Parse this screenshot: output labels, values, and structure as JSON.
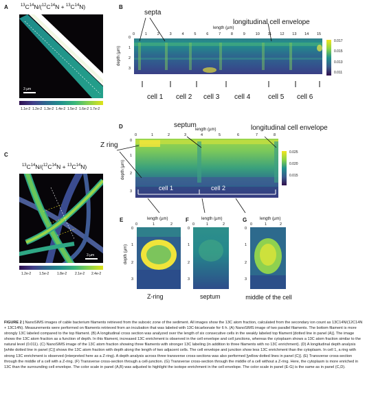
{
  "panelA": {
    "label": "A",
    "title_parts": [
      "13",
      "C",
      "14",
      "N/(",
      "12",
      "C",
      "14",
      "N + ",
      "13",
      "C",
      "14",
      "N)"
    ],
    "colorbar_ticks": [
      "1.1e-2",
      "1.2e-2",
      "1.3e-2",
      "1.4e-2",
      "1.5e-2",
      "1.6e-2",
      "1.7e-2"
    ],
    "scalebar": "3 µm"
  },
  "panelB": {
    "label": "B",
    "xlabel": "length (µm)",
    "ylabel": "depth (µm)",
    "xticks": [
      "0",
      "1",
      "2",
      "3",
      "4",
      "5",
      "6",
      "7",
      "8",
      "9",
      "10",
      "11",
      "12",
      "13",
      "14",
      "15"
    ],
    "yticks": [
      "0",
      "1",
      "2",
      "3"
    ],
    "colorbar_ticks": [
      "0.017",
      "0.015",
      "0.013",
      "0.011"
    ],
    "annotation_septa": "septa",
    "annotation_envelope": "longitudinal cell envelope",
    "cells": [
      "cell 1",
      "cell 2",
      "cell 3",
      "cell 4",
      "cell 5",
      "cell 6"
    ]
  },
  "panelC": {
    "label": "C",
    "title_parts": [
      "13",
      "C",
      "14",
      "N/(",
      "12",
      "C",
      "14",
      "N + ",
      "13",
      "C",
      "14",
      "N)"
    ],
    "colorbar_ticks": [
      "1.2e-2",
      "1.5e-2",
      "1.8e-2",
      "2.1e-2",
      "2.4e-2"
    ],
    "scalebar": "3 µm"
  },
  "panelD": {
    "label": "D",
    "xlabel": "length (µm)",
    "ylabel": "depth (µm)",
    "xticks": [
      "0",
      "1",
      "2",
      "3",
      "4",
      "5",
      "6",
      "7",
      "8"
    ],
    "yticks": [
      "0",
      "1",
      "2",
      "3"
    ],
    "colorbar_ticks": [
      "0.025",
      "0.020",
      "0.015"
    ],
    "annotation_septum": "septum",
    "annotation_envelope": "longitudinal cell envelope",
    "annotation_zring": "Z ring",
    "cells": [
      "cell 1",
      "cell 2"
    ]
  },
  "panelE": {
    "label": "E",
    "xlabel": "length (µm)",
    "ylabel": "depth (µm)",
    "xticks": [
      "0",
      "1",
      "2"
    ],
    "yticks": [
      "0",
      "1",
      "2",
      "3"
    ],
    "caption": "Z-ring"
  },
  "panelF": {
    "label": "F",
    "xlabel": "length (µm)",
    "xticks": [
      "0",
      "1",
      "2"
    ],
    "yticks": [
      "0",
      "1",
      "2",
      "3"
    ],
    "caption": "septum"
  },
  "panelG": {
    "label": "G",
    "xlabel": "length (µm)",
    "xticks": [
      "0",
      "1",
      "2"
    ],
    "yticks": [
      "0",
      "1",
      "2",
      "3"
    ],
    "caption": "middle of the cell"
  },
  "figure_caption": {
    "heading": "FIGURE 2 |",
    "text": "NanoSIMS images of cable bacterium filaments retrieved from the suboxic zone of the sediment. All images show the 13C atom fraction, calculated from the secondary ion count as 13C14N/(12C14N + 13C14N). Measurements were performed on filaments retrieved from an incubation that was labeled with 13C-bicarbonate for 6 h. (A) NanoSIMS image of two parallel filaments. The bottom filament is more strongly 13C labeled compared to the top filament. (B) A longitudinal cross section was analyzed over the length of six consecutive cells in the weakly labeled top filament [dotted line in panel (A)]. The image shows the 13C atom fraction as a function of depth. In this filament, increased 13C enrichment is observed in the cell envelope and cell junctions, whereas the cytoplasm shows a 13C atom fraction similar to the natural level (0.011). (C) NanoSIMS image of the 13C atom fraction showing three filaments with stronger 13C labeling (in addition to three filaments with no 13C enrichment). (D) A longitudinal depth analysis [white dotted line in panel (C)] shows the 13C atom fraction with depth along the length of two adjacent cells. The cell envelope and junction show less 13C enrichment than the cytoplasm. In cell 1, a ring with strong 13C enrichment is observed (interpreted here as a Z-ring). A depth analysis across three transverse cross-sections was also performed [yellow dotted lines in panel (C)]. (E) Transverse cross-section through the middle of a cell with a Z-ring. (F) Transverse cross-section through a cell-junction. (G) Transverse cross-section through the middle of a cell without a Z-ring. Here, the cytoplasm is more enriched in 13C than the surrounding cell envelope. The color scale in panel (A,B) was adjusted to highlight the isotope enrichment in the cell envelope. The color scale in panel (E-G) is the same as in panel (C,D)."
  }
}
